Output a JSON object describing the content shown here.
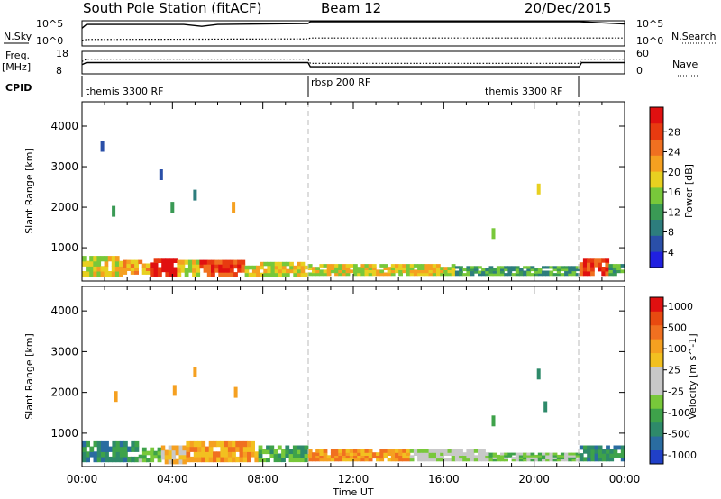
{
  "header": {
    "station": "South Pole Station (fitACF)",
    "beam": "Beam 12",
    "date": "20/Dec/2015"
  },
  "top_panels": {
    "sky_label": "N.Sky",
    "search_label": "N.Search",
    "sky_ticks": [
      "10^5",
      "10^0"
    ],
    "search_ticks": [
      "10^5",
      "10^0"
    ],
    "freq_label": "Freq.",
    "freq_unit": "[MHz]",
    "freq_ticks": [
      "18",
      "8"
    ],
    "nave_label": "Nave",
    "nave_ticks": [
      "60",
      "0"
    ],
    "cpid_label": "CPID",
    "cpid_segments": [
      {
        "label": "themis 3300 RF",
        "start": 0,
        "end": 10
      },
      {
        "label": "rbsp 200 RF",
        "start": 10,
        "end": 22
      },
      {
        "label": "themis 3300 RF",
        "start": 22,
        "end": 24
      }
    ]
  },
  "colorbars": {
    "power": {
      "title": "Power [dB]",
      "ticks": [
        "4",
        "8",
        "12",
        "16",
        "20",
        "24",
        "28"
      ],
      "colors": [
        "#2020e0",
        "#2a4fa8",
        "#2d7d7d",
        "#3a9a55",
        "#78c83a",
        "#e8d020",
        "#f5a020",
        "#f07020",
        "#e83a10",
        "#e01010"
      ]
    },
    "velocity": {
      "title": "Velocity [m s^-1]",
      "ticks": [
        "1000",
        "500",
        "100",
        "25",
        "-25",
        "-100",
        "-500",
        "-1000"
      ],
      "colors": [
        "#2040c8",
        "#2a6ca0",
        "#2e8a6a",
        "#3ea24a",
        "#78c83a",
        "#c8c8c8",
        "#c8c8c8",
        "#f2c020",
        "#f5a020",
        "#f07020",
        "#e84a10",
        "#e01010"
      ]
    }
  },
  "chart_data": [
    {
      "type": "line",
      "title": "",
      "series": [
        {
          "name": "N.Sky",
          "x": [
            0,
            0.2,
            4.5,
            5.3,
            6,
            10,
            10.1,
            22,
            24
          ],
          "y": [
            3.6,
            4.4,
            4.4,
            4.0,
            4.4,
            4.6,
            5.0,
            5.0,
            4.5
          ]
        },
        {
          "name": "N.Search",
          "x": [
            0,
            0.2,
            10,
            10.1,
            24
          ],
          "y": [
            1.0,
            1.2,
            1.3,
            1.5,
            1.5
          ]
        }
      ],
      "xlim": [
        0,
        24
      ],
      "ylim": [
        0,
        5
      ]
    },
    {
      "type": "line",
      "title": "",
      "series": [
        {
          "name": "Freq.",
          "x": [
            0,
            0.2,
            10,
            10.1,
            22,
            22.1,
            24
          ],
          "y": [
            12,
            13,
            13,
            11,
            11,
            13,
            13
          ]
        },
        {
          "name": "Nave",
          "x": [
            0,
            0.2,
            10,
            10.1,
            22,
            22.1,
            24
          ],
          "y": [
            33,
            40,
            40,
            28,
            28,
            40,
            40
          ]
        }
      ],
      "xlim": [
        0,
        24
      ]
    },
    {
      "type": "heatmap",
      "title": "",
      "xlabel": "",
      "ylabel": "Slant Range [km]",
      "xlim": [
        0,
        24
      ],
      "ylim": [
        180,
        4600
      ],
      "yticks": [
        1000,
        2000,
        3000,
        4000
      ],
      "colorbar": "Power [dB]",
      "echo_bands": [
        {
          "t0": 0.0,
          "t1": 1.8,
          "r0": 300,
          "r1": 800,
          "level": 5
        },
        {
          "t0": 1.8,
          "t1": 3.0,
          "r0": 350,
          "r1": 700,
          "level": 6
        },
        {
          "t0": 3.0,
          "t1": 4.2,
          "r0": 300,
          "r1": 750,
          "level": 9
        },
        {
          "t0": 4.2,
          "t1": 5.2,
          "r0": 300,
          "r1": 700,
          "level": 5
        },
        {
          "t0": 5.2,
          "t1": 7.2,
          "r0": 300,
          "r1": 700,
          "level": 8
        },
        {
          "t0": 7.2,
          "t1": 10.0,
          "r0": 300,
          "r1": 650,
          "level": 5
        },
        {
          "t0": 10.0,
          "t1": 16.5,
          "r0": 320,
          "r1": 600,
          "level": 5
        },
        {
          "t0": 16.5,
          "t1": 22.0,
          "r0": 320,
          "r1": 550,
          "level": 3
        },
        {
          "t0": 22.0,
          "t1": 23.3,
          "r0": 320,
          "r1": 750,
          "level": 8
        },
        {
          "t0": 23.3,
          "t1": 24.0,
          "r0": 320,
          "r1": 600,
          "level": 3
        }
      ],
      "echo_patches": [
        {
          "t": 1.4,
          "r": 1900,
          "level": 3
        },
        {
          "t": 4.0,
          "r": 2000,
          "level": 3
        },
        {
          "t": 5.0,
          "r": 2300,
          "level": 2
        },
        {
          "t": 6.7,
          "r": 2000,
          "level": 6
        },
        {
          "t": 18.2,
          "r": 1350,
          "level": 4
        },
        {
          "t": 20.2,
          "r": 2450,
          "level": 5
        },
        {
          "t": 0.9,
          "r": 3500,
          "level": 1
        },
        {
          "t": 3.5,
          "r": 2800,
          "level": 1
        }
      ]
    },
    {
      "type": "heatmap",
      "title": "",
      "xlabel": "Time UT",
      "ylabel": "Slant Range [km]",
      "xlim": [
        0,
        24
      ],
      "ylim": [
        180,
        4600
      ],
      "xticks": [
        "00:00",
        "04:00",
        "08:00",
        "12:00",
        "16:00",
        "20:00",
        "00:00"
      ],
      "yticks": [
        1000,
        2000,
        3000,
        4000
      ],
      "colorbar": "Velocity [m s^-1]",
      "echo_bands": [
        {
          "t0": 0.0,
          "t1": 2.5,
          "r0": 300,
          "r1": 800,
          "level": 2
        },
        {
          "t0": 2.5,
          "t1": 3.5,
          "r0": 300,
          "r1": 650,
          "level": 4
        },
        {
          "t0": 3.5,
          "t1": 4.6,
          "r0": 250,
          "r1": 700,
          "level": 7
        },
        {
          "t0": 4.6,
          "t1": 7.8,
          "r0": 300,
          "r1": 800,
          "level": 8
        },
        {
          "t0": 7.8,
          "t1": 10.0,
          "r0": 300,
          "r1": 700,
          "level": 3
        },
        {
          "t0": 10.0,
          "t1": 14.5,
          "r0": 320,
          "r1": 600,
          "level": 8
        },
        {
          "t0": 14.5,
          "t1": 18.0,
          "r0": 320,
          "r1": 600,
          "level": 5
        },
        {
          "t0": 18.0,
          "t1": 22.0,
          "r0": 320,
          "r1": 520,
          "level": 4
        },
        {
          "t0": 22.0,
          "t1": 24.0,
          "r0": 320,
          "r1": 700,
          "level": 2
        }
      ],
      "echo_patches": [
        {
          "t": 1.5,
          "r": 1900,
          "level": 8
        },
        {
          "t": 4.1,
          "r": 2050,
          "level": 8
        },
        {
          "t": 5.0,
          "r": 2500,
          "level": 8
        },
        {
          "t": 6.8,
          "r": 2000,
          "level": 8
        },
        {
          "t": 18.2,
          "r": 1300,
          "level": 3
        },
        {
          "t": 20.2,
          "r": 2450,
          "level": 2
        },
        {
          "t": 20.5,
          "r": 1650,
          "level": 2
        }
      ]
    }
  ]
}
